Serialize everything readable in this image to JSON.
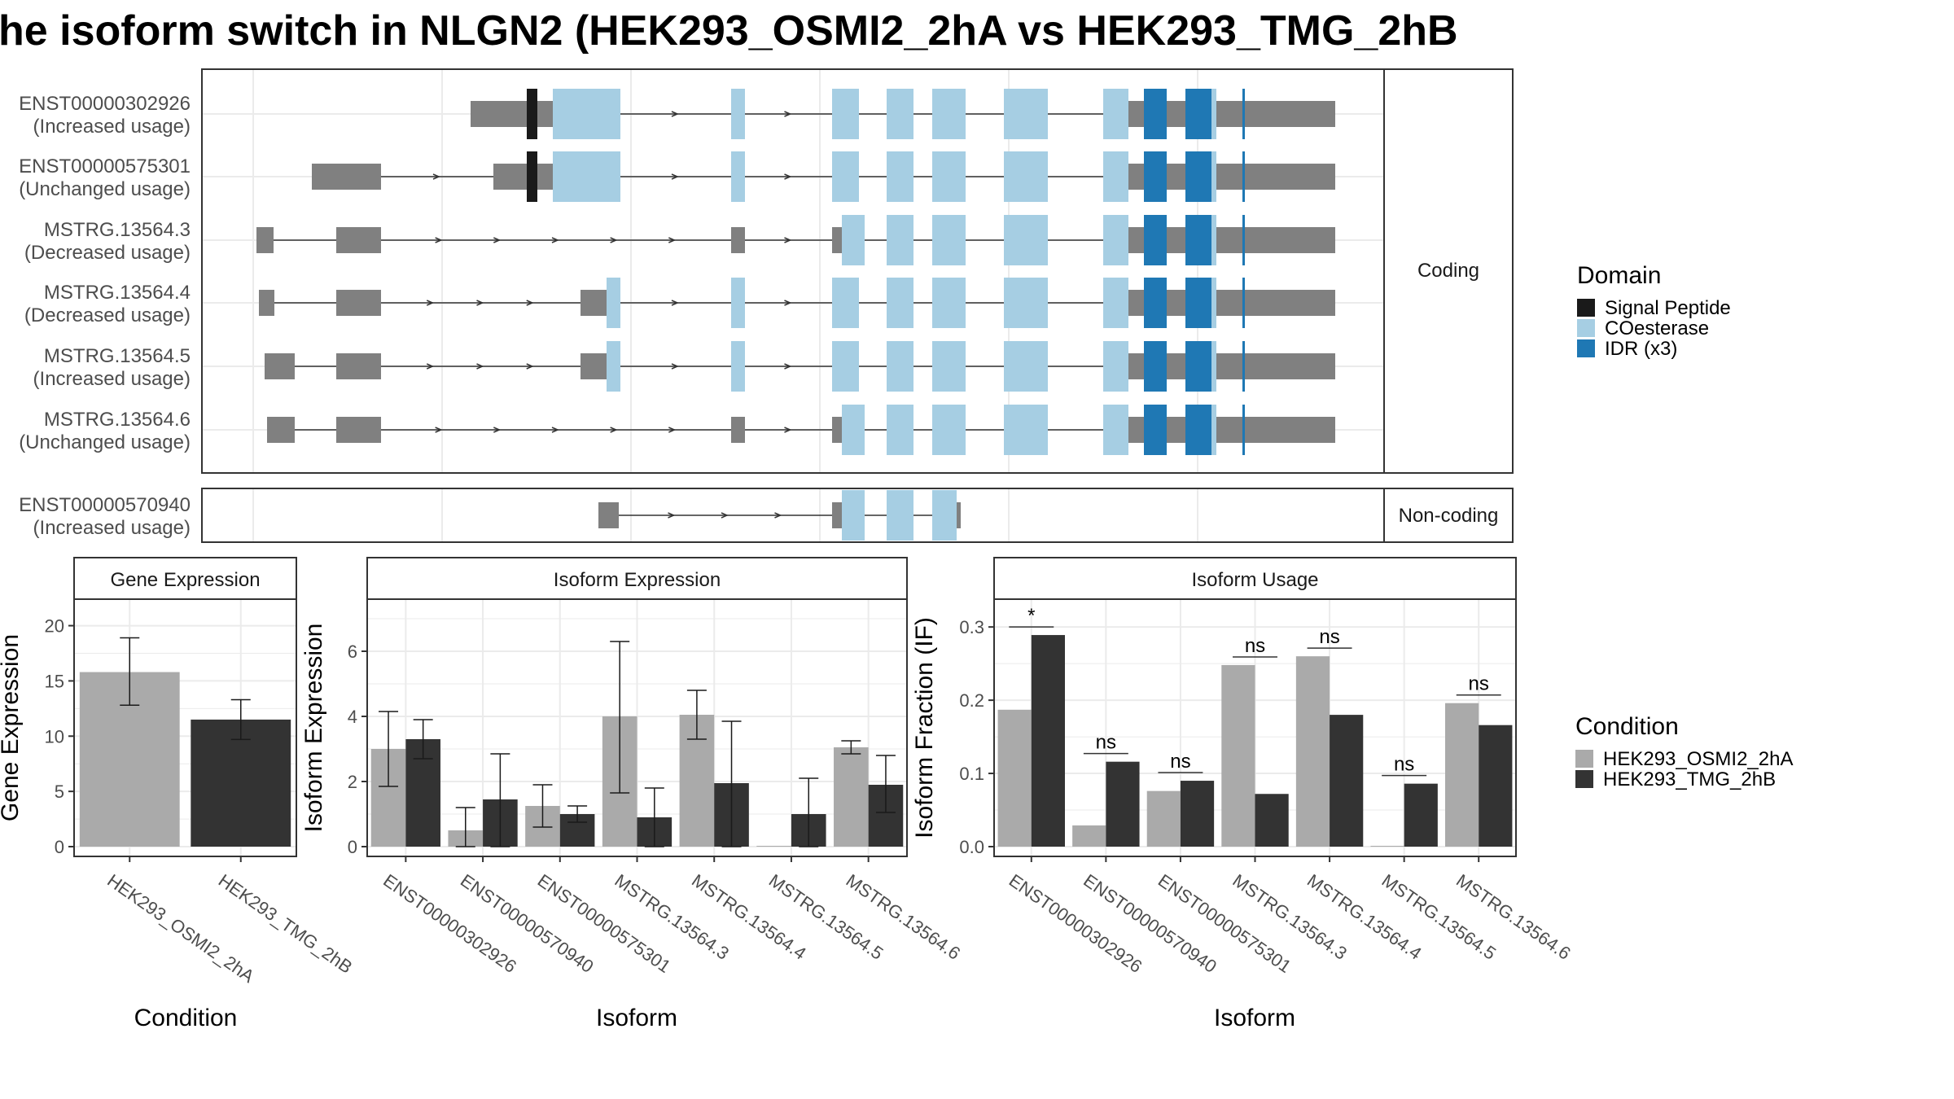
{
  "title": "he isoform switch in NLGN2 (HEK293_OSMI2_2hA vs HEK293_TMG_2hB",
  "colors": {
    "utr": "#808080",
    "signal_peptide": "#1a1a1a",
    "coesterase": "#a6cee3",
    "idr": "#1f78b4",
    "cond_a": "#aaaaaa",
    "cond_b": "#333333",
    "grid": "#ebebeb",
    "frame": "#333333"
  },
  "structure": {
    "coding_strip": "Coding",
    "noncoding_strip": "Non-coding",
    "coding_isoforms": [
      {
        "id": "ENST00000302926",
        "usage": "(Increased usage)"
      },
      {
        "id": "ENST00000575301",
        "usage": "(Unchanged usage)"
      },
      {
        "id": "MSTRG.13564.3",
        "usage": "(Decreased usage)"
      },
      {
        "id": "MSTRG.13564.4",
        "usage": "(Decreased usage)"
      },
      {
        "id": "MSTRG.13564.5",
        "usage": "(Increased usage)"
      },
      {
        "id": "MSTRG.13564.6",
        "usage": "(Unchanged usage)"
      }
    ],
    "noncoding_isoforms": [
      {
        "id": "ENST00000570940",
        "usage": "(Increased usage)"
      }
    ]
  },
  "domain_legend": {
    "title": "Domain",
    "items": [
      {
        "label": "Signal Peptide",
        "color": "#1a1a1a"
      },
      {
        "label": "COesterase",
        "color": "#a6cee3"
      },
      {
        "label": "IDR (x3)",
        "color": "#1f78b4"
      }
    ]
  },
  "condition_legend": {
    "title": "Condition",
    "items": [
      {
        "label": "HEK293_OSMI2_2hA",
        "color": "#aaaaaa"
      },
      {
        "label": "HEK293_TMG_2hB",
        "color": "#333333"
      }
    ]
  },
  "chart_data": [
    {
      "type": "bar",
      "strip": "Gene Expression",
      "xlabel": "Condition",
      "ylabel": "Gene Expression",
      "ylim": [
        0,
        22.4
      ],
      "yticks": [
        "0",
        "5",
        "10",
        "15",
        "20"
      ],
      "categories": [
        "HEK293_OSMI2_2hA",
        "HEK293_TMG_2hB"
      ],
      "values": [
        15.8,
        11.5
      ],
      "errors": [
        [
          12.8,
          18.9
        ],
        [
          9.7,
          13.3
        ]
      ]
    },
    {
      "type": "bar",
      "strip": "Isoform Expression",
      "xlabel": "Isoform",
      "ylabel": "Isoform Expression",
      "ylim": [
        0,
        7.6
      ],
      "yticks": [
        "0",
        "2",
        "4",
        "6"
      ],
      "categories": [
        "ENST00000302926",
        "ENST00000570940",
        "ENST00000575301",
        "MSTRG.13564.3",
        "MSTRG.13564.4",
        "MSTRG.13564.5",
        "MSTRG.13564.6"
      ],
      "series": [
        {
          "name": "HEK293_OSMI2_2hA",
          "values": [
            3.0,
            0.5,
            1.25,
            4.0,
            4.05,
            0.0,
            3.05
          ],
          "errors": [
            [
              1.85,
              4.15
            ],
            [
              0.0,
              1.2
            ],
            [
              0.6,
              1.9
            ],
            [
              1.65,
              6.3
            ],
            [
              3.3,
              4.8
            ],
            [
              null,
              null
            ],
            [
              2.85,
              3.25
            ]
          ]
        },
        {
          "name": "HEK293_TMG_2hB",
          "values": [
            3.3,
            1.45,
            1.0,
            0.9,
            1.95,
            1.0,
            1.9
          ],
          "errors": [
            [
              2.7,
              3.9
            ],
            [
              0.0,
              2.85
            ],
            [
              0.75,
              1.25
            ],
            [
              0.0,
              1.8
            ],
            [
              0.0,
              3.85
            ],
            [
              0.0,
              2.1
            ],
            [
              1.05,
              2.8
            ]
          ]
        }
      ]
    },
    {
      "type": "bar",
      "strip": "Isoform Usage",
      "xlabel": "Isoform",
      "ylabel": "Isoform Fraction (IF)",
      "ylim": [
        0,
        0.338
      ],
      "yticks": [
        "0.0",
        "0.1",
        "0.2",
        "0.3"
      ],
      "categories": [
        "ENST00000302926",
        "ENST00000570940",
        "ENST00000575301",
        "MSTRG.13564.3",
        "MSTRG.13564.4",
        "MSTRG.13564.5",
        "MSTRG.13564.6"
      ],
      "series": [
        {
          "name": "HEK293_OSMI2_2hA",
          "values": [
            0.187,
            0.029,
            0.076,
            0.248,
            0.26,
            0.0,
            0.196
          ]
        },
        {
          "name": "HEK293_TMG_2hB",
          "values": [
            0.289,
            0.116,
            0.09,
            0.072,
            0.18,
            0.086,
            0.166
          ]
        }
      ],
      "significance": [
        "*",
        "ns",
        "ns",
        "ns",
        "ns",
        "ns",
        "ns"
      ]
    }
  ]
}
